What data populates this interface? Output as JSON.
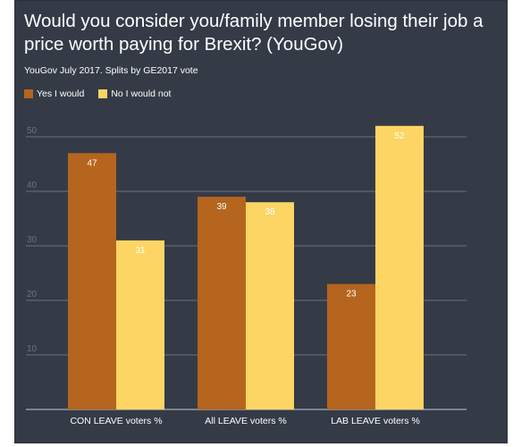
{
  "chart_data": {
    "type": "bar",
    "title": "Would you consider you/family member losing their job a price worth paying for Brexit? (YouGov)",
    "subtitle": "YouGov July 2017. Splits by GE2017 vote",
    "categories": [
      "CON LEAVE voters %",
      "All LEAVE voters %",
      "LAB LEAVE voters %"
    ],
    "series": [
      {
        "name": "Yes I would",
        "values": [
          47,
          39,
          23
        ],
        "color": "#b5651d"
      },
      {
        "name": "No I would not",
        "values": [
          31,
          38,
          52
        ],
        "color": "#fdd564"
      }
    ],
    "yticks": [
      10,
      20,
      30,
      40,
      50
    ],
    "ylim": [
      0,
      55
    ],
    "grid": true,
    "legend_position": "top-left",
    "background_color": "#343b47",
    "grid_color": "#6b717b",
    "tick_color": "#6b727d",
    "value_label_color": "#ffffff"
  }
}
